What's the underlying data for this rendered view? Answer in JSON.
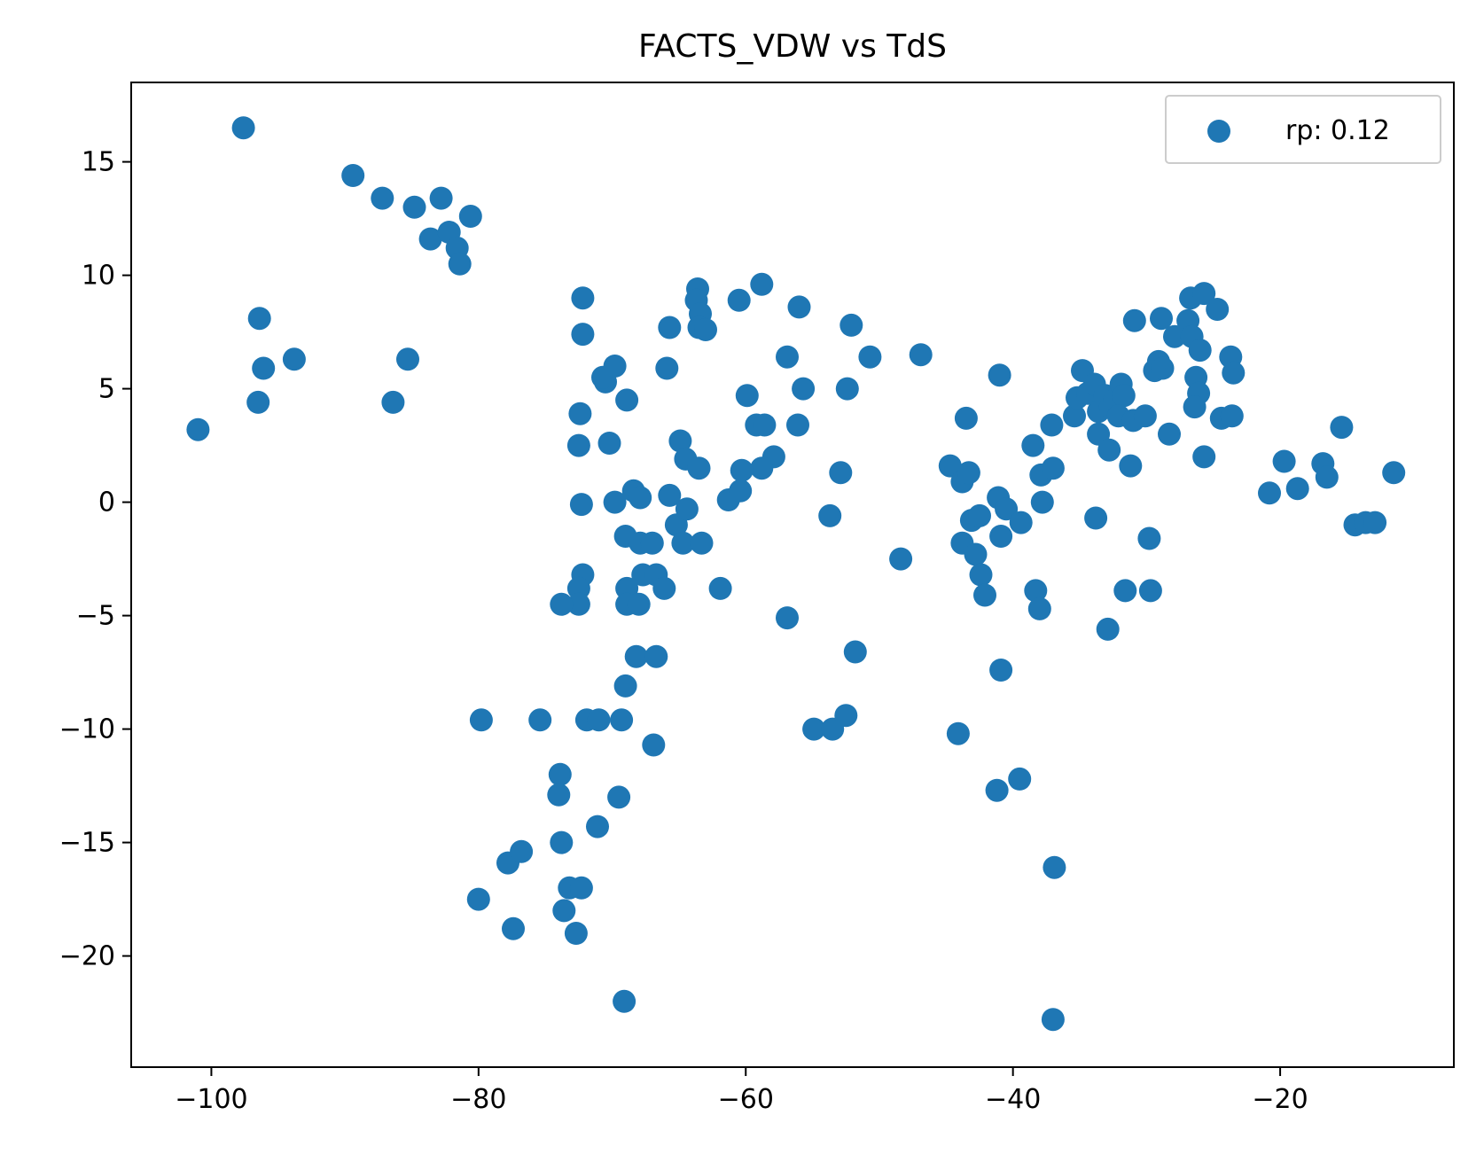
{
  "chart_data": {
    "type": "scatter",
    "title": "FACTS_VDW vs TdS",
    "xlabel": "",
    "ylabel": "",
    "xlim": [
      -106,
      -7
    ],
    "ylim": [
      -24.9,
      18.5
    ],
    "xticks": [
      -100,
      -80,
      -60,
      -40,
      -20
    ],
    "yticks": [
      -20,
      -15,
      -10,
      -5,
      0,
      5,
      10,
      15
    ],
    "xtick_labels": [
      "−100",
      "−80",
      "−60",
      "−40",
      "−20"
    ],
    "ytick_labels": [
      "−20",
      "−15",
      "−10",
      "−5",
      "0",
      "5",
      "10",
      "15"
    ],
    "grid": false,
    "legend": {
      "placement": "upper right",
      "entries": [
        "rp: 0.12"
      ]
    },
    "marker_color": "#1f77b4",
    "series": [
      {
        "name": "rp: 0.12",
        "points": [
          [
            -97.6,
            16.5
          ],
          [
            -89.4,
            14.4
          ],
          [
            -87.2,
            13.4
          ],
          [
            -84.8,
            13.0
          ],
          [
            -82.8,
            13.4
          ],
          [
            -83.6,
            11.6
          ],
          [
            -82.2,
            11.9
          ],
          [
            -81.6,
            11.2
          ],
          [
            -81.4,
            10.5
          ],
          [
            -80.6,
            12.6
          ],
          [
            -101.0,
            3.2
          ],
          [
            -96.4,
            8.1
          ],
          [
            -96.5,
            4.4
          ],
          [
            -96.1,
            5.9
          ],
          [
            -93.8,
            6.3
          ],
          [
            -86.4,
            4.4
          ],
          [
            -85.3,
            6.3
          ],
          [
            -72.2,
            9.0
          ],
          [
            -72.2,
            7.4
          ],
          [
            -72.4,
            3.9
          ],
          [
            -72.5,
            2.5
          ],
          [
            -72.3,
            -0.1
          ],
          [
            -70.5,
            5.3
          ],
          [
            -70.7,
            5.5
          ],
          [
            -69.8,
            6.0
          ],
          [
            -70.2,
            2.6
          ],
          [
            -69.8,
            0.0
          ],
          [
            -68.9,
            4.5
          ],
          [
            -68.4,
            0.5
          ],
          [
            -67.9,
            0.2
          ],
          [
            -69.0,
            -1.5
          ],
          [
            -67.9,
            -1.8
          ],
          [
            -67.0,
            -1.8
          ],
          [
            -68.9,
            -3.8
          ],
          [
            -68.9,
            -4.5
          ],
          [
            -68.0,
            -4.5
          ],
          [
            -67.7,
            -3.2
          ],
          [
            -66.7,
            -3.2
          ],
          [
            -66.1,
            -3.8
          ],
          [
            -72.2,
            -3.2
          ],
          [
            -72.5,
            -3.8
          ],
          [
            -72.5,
            -4.5
          ],
          [
            -73.8,
            -4.5
          ],
          [
            -65.7,
            7.7
          ],
          [
            -65.9,
            5.9
          ],
          [
            -64.9,
            2.7
          ],
          [
            -64.5,
            1.9
          ],
          [
            -63.5,
            1.5
          ],
          [
            -65.7,
            0.3
          ],
          [
            -65.2,
            -1.0
          ],
          [
            -64.4,
            -0.3
          ],
          [
            -64.7,
            -1.8
          ],
          [
            -63.3,
            -1.8
          ],
          [
            -63.6,
            9.4
          ],
          [
            -63.7,
            8.9
          ],
          [
            -63.4,
            8.3
          ],
          [
            -63.5,
            7.7
          ],
          [
            -63.0,
            7.6
          ],
          [
            -60.5,
            8.9
          ],
          [
            -58.8,
            9.6
          ],
          [
            -56.0,
            8.6
          ],
          [
            -52.1,
            7.8
          ],
          [
            -50.7,
            6.4
          ],
          [
            -46.9,
            6.5
          ],
          [
            -56.9,
            6.4
          ],
          [
            -55.7,
            5.0
          ],
          [
            -52.4,
            5.0
          ],
          [
            -59.9,
            4.7
          ],
          [
            -59.2,
            3.4
          ],
          [
            -58.6,
            3.4
          ],
          [
            -56.1,
            3.4
          ],
          [
            -57.9,
            2.0
          ],
          [
            -58.8,
            1.5
          ],
          [
            -60.3,
            1.4
          ],
          [
            -52.9,
            1.3
          ],
          [
            -61.3,
            0.1
          ],
          [
            -60.4,
            0.5
          ],
          [
            -53.7,
            -0.6
          ],
          [
            -61.9,
            -3.8
          ],
          [
            -48.4,
            -2.5
          ],
          [
            -56.9,
            -5.1
          ],
          [
            -51.8,
            -6.6
          ],
          [
            -68.2,
            -6.8
          ],
          [
            -66.7,
            -6.8
          ],
          [
            -69.0,
            -8.1
          ],
          [
            -79.8,
            -9.6
          ],
          [
            -75.4,
            -9.6
          ],
          [
            -71.9,
            -9.6
          ],
          [
            -71.0,
            -9.6
          ],
          [
            -69.3,
            -9.6
          ],
          [
            -66.9,
            -10.7
          ],
          [
            -54.9,
            -10.0
          ],
          [
            -53.5,
            -10.0
          ],
          [
            -52.5,
            -9.4
          ],
          [
            -73.9,
            -12.0
          ],
          [
            -74.0,
            -12.9
          ],
          [
            -69.5,
            -13.0
          ],
          [
            -71.1,
            -14.3
          ],
          [
            -73.8,
            -15.0
          ],
          [
            -77.8,
            -15.9
          ],
          [
            -76.8,
            -15.4
          ],
          [
            -73.2,
            -17.0
          ],
          [
            -72.3,
            -17.0
          ],
          [
            -80.0,
            -17.5
          ],
          [
            -77.4,
            -18.8
          ],
          [
            -73.6,
            -18.0
          ],
          [
            -72.7,
            -19.0
          ],
          [
            -69.1,
            -22.0
          ],
          [
            -44.7,
            1.6
          ],
          [
            -43.8,
            0.9
          ],
          [
            -43.3,
            1.3
          ],
          [
            -43.5,
            3.7
          ],
          [
            -41.0,
            5.6
          ],
          [
            -43.1,
            -0.8
          ],
          [
            -42.5,
            -0.6
          ],
          [
            -41.1,
            0.2
          ],
          [
            -40.5,
            -0.3
          ],
          [
            -39.4,
            -0.9
          ],
          [
            -43.8,
            -1.8
          ],
          [
            -42.8,
            -2.3
          ],
          [
            -42.4,
            -3.2
          ],
          [
            -42.1,
            -4.1
          ],
          [
            -40.9,
            -1.5
          ],
          [
            -38.5,
            2.5
          ],
          [
            -37.1,
            3.4
          ],
          [
            -35.4,
            3.8
          ],
          [
            -37.9,
            1.2
          ],
          [
            -37.0,
            1.5
          ],
          [
            -37.8,
            0.0
          ],
          [
            -38.3,
            -3.9
          ],
          [
            -38.0,
            -4.7
          ],
          [
            -40.9,
            -7.4
          ],
          [
            -44.1,
            -10.2
          ],
          [
            -41.2,
            -12.7
          ],
          [
            -39.5,
            -12.2
          ],
          [
            -36.9,
            -16.1
          ],
          [
            -37.0,
            -22.8
          ],
          [
            -34.8,
            5.8
          ],
          [
            -35.2,
            4.6
          ],
          [
            -34.4,
            4.8
          ],
          [
            -33.9,
            5.2
          ],
          [
            -33.6,
            4.0
          ],
          [
            -33.1,
            4.7
          ],
          [
            -32.7,
            4.2
          ],
          [
            -32.4,
            4.5
          ],
          [
            -31.9,
            5.2
          ],
          [
            -31.7,
            4.7
          ],
          [
            -32.1,
            3.8
          ],
          [
            -31.0,
            3.6
          ],
          [
            -30.1,
            3.8
          ],
          [
            -33.6,
            3.0
          ],
          [
            -32.8,
            2.3
          ],
          [
            -31.2,
            1.6
          ],
          [
            -33.8,
            -0.7
          ],
          [
            -31.6,
            -3.9
          ],
          [
            -29.7,
            -3.9
          ],
          [
            -29.8,
            -1.6
          ],
          [
            -32.9,
            -5.6
          ],
          [
            -30.9,
            8.0
          ],
          [
            -28.9,
            8.1
          ],
          [
            -27.9,
            7.3
          ],
          [
            -26.9,
            8.0
          ],
          [
            -26.6,
            7.3
          ],
          [
            -26.0,
            6.7
          ],
          [
            -26.7,
            9.0
          ],
          [
            -25.7,
            9.2
          ],
          [
            -24.7,
            8.5
          ],
          [
            -29.4,
            5.8
          ],
          [
            -29.1,
            6.2
          ],
          [
            -28.8,
            5.9
          ],
          [
            -26.3,
            5.5
          ],
          [
            -26.1,
            4.8
          ],
          [
            -26.4,
            4.2
          ],
          [
            -23.7,
            6.4
          ],
          [
            -23.5,
            5.7
          ],
          [
            -24.4,
            3.7
          ],
          [
            -23.6,
            3.8
          ],
          [
            -28.3,
            3.0
          ],
          [
            -25.7,
            2.0
          ],
          [
            -20.8,
            0.4
          ],
          [
            -19.7,
            1.8
          ],
          [
            -18.7,
            0.6
          ],
          [
            -16.8,
            1.7
          ],
          [
            -16.5,
            1.1
          ],
          [
            -15.4,
            3.3
          ],
          [
            -14.4,
            -1.0
          ],
          [
            -13.6,
            -0.9
          ],
          [
            -12.9,
            -0.9
          ],
          [
            -11.5,
            1.3
          ]
        ]
      }
    ]
  }
}
